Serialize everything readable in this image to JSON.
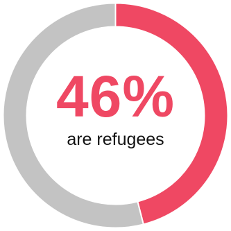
{
  "chart_data": {
    "type": "pie",
    "variant": "donut",
    "slices": [
      {
        "label": "are refugees",
        "value": 46,
        "color": "#ef4863"
      },
      {
        "label": "",
        "value": 54,
        "color": "#c3c3c3"
      }
    ],
    "center_value": "46%",
    "center_caption": "are refugees",
    "title": ""
  },
  "colors": {
    "accent": "#ef4863",
    "remainder": "#c3c3c3",
    "divider": "#ffffff",
    "caption": "#111111"
  }
}
